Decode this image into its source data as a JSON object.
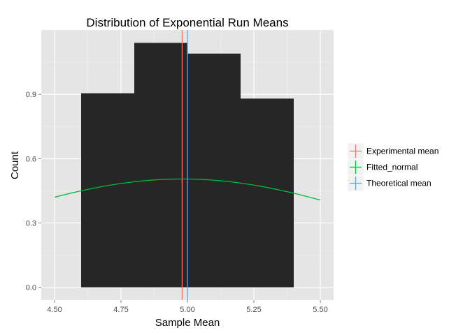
{
  "chart_data": {
    "type": "bar",
    "title": "Distribution of Exponential Run Means",
    "xlabel": "Sample Mean",
    "ylabel": "Count",
    "xlim": [
      4.45,
      5.55
    ],
    "ylim": [
      -0.06,
      1.2
    ],
    "x_ticks": [
      4.5,
      4.75,
      5.0,
      5.25,
      5.5
    ],
    "x_tick_labels": [
      "4.50",
      "4.75",
      "5.00",
      "5.25",
      "5.50"
    ],
    "y_ticks": [
      0.0,
      0.3,
      0.6,
      0.9
    ],
    "y_tick_labels": [
      "0.0",
      "0.3",
      "0.6",
      "0.9"
    ],
    "grid": true,
    "bars": [
      {
        "x0": 4.6,
        "x1": 4.8,
        "value": 0.905
      },
      {
        "x0": 4.8,
        "x1": 5.0,
        "value": 1.14
      },
      {
        "x0": 5.0,
        "x1": 5.2,
        "value": 1.09
      },
      {
        "x0": 5.2,
        "x1": 5.4,
        "value": 0.88
      }
    ],
    "bar_color": "#262626",
    "lines": [
      {
        "name": "Experimental mean",
        "kind": "vline",
        "x": 4.98,
        "color": "#f8766d"
      },
      {
        "name": "Fitted_normal",
        "kind": "curve",
        "mean": 4.98,
        "sd": 0.79,
        "x_range": [
          4.5,
          5.5
        ],
        "color": "#00ba38"
      },
      {
        "name": "Theoretical mean",
        "kind": "vline",
        "x": 5.0,
        "color": "#619cff"
      }
    ],
    "legend_position": "right",
    "panel_background": "#e5e5e5",
    "grid_color": "#ffffff"
  }
}
